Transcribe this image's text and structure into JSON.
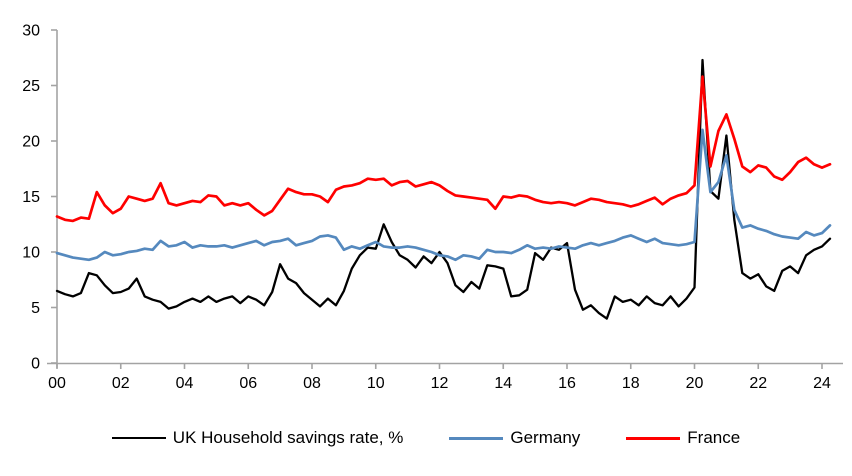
{
  "chart_data": {
    "type": "line",
    "title": "",
    "xlabel": "",
    "ylabel": "",
    "frequency": "quarterly",
    "x_start_year": 2000,
    "x_step_years": 0.25,
    "x_axis": {
      "tick_years": [
        2000,
        2002,
        2004,
        2006,
        2008,
        2010,
        2012,
        2014,
        2016,
        2018,
        2020,
        2022,
        2024
      ],
      "tick_labels": [
        "00",
        "02",
        "04",
        "06",
        "08",
        "10",
        "12",
        "14",
        "16",
        "18",
        "20",
        "22",
        "24"
      ]
    },
    "y_axis": {
      "min": 0,
      "max": 30,
      "ticks": [
        0,
        5,
        10,
        15,
        20,
        25,
        30
      ],
      "tick_labels": [
        "0",
        "5",
        "10",
        "15",
        "20",
        "25",
        "30"
      ]
    },
    "grid": false,
    "legend_position": "bottom",
    "axis_color": "#A3A3A3",
    "series": [
      {
        "name": "UK Household savings rate, %",
        "color": "#000000",
        "stroke_width": 2.3,
        "values": [
          6.5,
          6.2,
          6.0,
          6.3,
          8.1,
          7.9,
          7.0,
          6.3,
          6.4,
          6.7,
          7.6,
          6.0,
          5.7,
          5.5,
          4.9,
          5.1,
          5.5,
          5.8,
          5.5,
          6.0,
          5.5,
          5.8,
          6.0,
          5.4,
          6.0,
          5.7,
          5.2,
          6.4,
          8.9,
          7.6,
          7.2,
          6.3,
          5.7,
          5.1,
          5.8,
          5.2,
          6.5,
          8.5,
          9.7,
          10.4,
          10.3,
          12.5,
          10.9,
          9.7,
          9.3,
          8.6,
          9.6,
          9.0,
          10.0,
          9.0,
          7.0,
          6.4,
          7.3,
          6.7,
          8.8,
          8.7,
          8.5,
          6.0,
          6.1,
          6.6,
          9.9,
          9.3,
          10.4,
          10.2,
          10.8,
          6.6,
          4.8,
          5.2,
          4.5,
          4.0,
          6.0,
          5.5,
          5.7,
          5.2,
          6.0,
          5.4,
          5.2,
          6.0,
          5.1,
          5.8,
          6.8,
          27.3,
          15.5,
          14.8,
          20.5,
          12.9,
          8.1,
          7.6,
          8.0,
          6.9,
          6.5,
          8.3,
          8.7,
          8.1,
          9.7,
          10.2,
          10.5,
          11.2
        ]
      },
      {
        "name": "Germany",
        "color": "#5589BE",
        "stroke_width": 2.7,
        "values": [
          9.9,
          9.7,
          9.5,
          9.4,
          9.3,
          9.5,
          10.0,
          9.7,
          9.8,
          10.0,
          10.1,
          10.3,
          10.2,
          11.0,
          10.5,
          10.6,
          10.9,
          10.4,
          10.6,
          10.5,
          10.5,
          10.6,
          10.4,
          10.6,
          10.8,
          11.0,
          10.6,
          10.9,
          11.0,
          11.2,
          10.6,
          10.8,
          11.0,
          11.4,
          11.5,
          11.3,
          10.2,
          10.5,
          10.3,
          10.6,
          10.9,
          10.5,
          10.4,
          10.4,
          10.5,
          10.4,
          10.2,
          10.0,
          9.7,
          9.6,
          9.3,
          9.7,
          9.6,
          9.4,
          10.2,
          10.0,
          10.0,
          9.9,
          10.2,
          10.6,
          10.3,
          10.4,
          10.3,
          10.5,
          10.4,
          10.3,
          10.6,
          10.8,
          10.6,
          10.8,
          11.0,
          11.3,
          11.5,
          11.2,
          10.9,
          11.2,
          10.8,
          10.7,
          10.6,
          10.7,
          10.9,
          21.0,
          15.4,
          16.3,
          18.7,
          13.8,
          12.2,
          12.4,
          12.1,
          11.9,
          11.6,
          11.4,
          11.3,
          11.2,
          11.8,
          11.5,
          11.7,
          12.4
        ]
      },
      {
        "name": "France",
        "color": "#FF0000",
        "stroke_width": 2.7,
        "values": [
          13.2,
          12.9,
          12.8,
          13.1,
          13.0,
          15.4,
          14.2,
          13.5,
          13.9,
          15.0,
          14.8,
          14.6,
          14.8,
          16.2,
          14.4,
          14.2,
          14.4,
          14.6,
          14.5,
          15.1,
          15.0,
          14.2,
          14.4,
          14.2,
          14.4,
          13.8,
          13.3,
          13.7,
          14.7,
          15.7,
          15.4,
          15.2,
          15.2,
          15.0,
          14.5,
          15.6,
          15.9,
          16.0,
          16.2,
          16.6,
          16.5,
          16.6,
          16.0,
          16.3,
          16.4,
          15.9,
          16.1,
          16.3,
          16.0,
          15.5,
          15.1,
          15.0,
          14.9,
          14.8,
          14.7,
          13.9,
          15.0,
          14.9,
          15.1,
          15.0,
          14.7,
          14.5,
          14.4,
          14.5,
          14.4,
          14.2,
          14.5,
          14.8,
          14.7,
          14.5,
          14.4,
          14.3,
          14.1,
          14.3,
          14.6,
          14.9,
          14.3,
          14.8,
          15.1,
          15.3,
          16.0,
          25.8,
          17.7,
          20.9,
          22.4,
          20.2,
          17.7,
          17.2,
          17.8,
          17.6,
          16.8,
          16.5,
          17.2,
          18.1,
          18.5,
          17.9,
          17.6,
          17.9
        ]
      }
    ]
  },
  "legend": {
    "uk_label": "UK Household savings rate, %",
    "germany_label": "Germany",
    "france_label": "France"
  }
}
